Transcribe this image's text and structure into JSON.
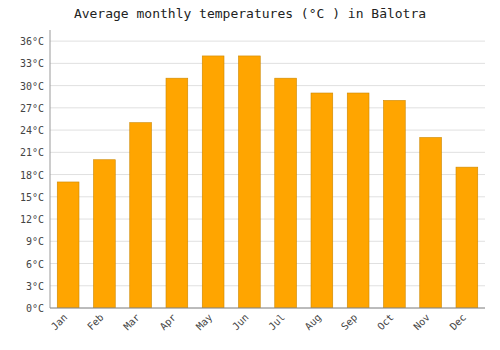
{
  "chart_data": {
    "type": "bar",
    "title": "Average monthly temperatures (°C ) in Bālotra",
    "categories": [
      "Jan",
      "Feb",
      "Mar",
      "Apr",
      "May",
      "Jun",
      "Jul",
      "Aug",
      "Sep",
      "Oct",
      "Nov",
      "Dec"
    ],
    "values": [
      17,
      20,
      25,
      31,
      34,
      34,
      31,
      29,
      29,
      28,
      23,
      19
    ],
    "color": "#FFA500",
    "ylim": [
      0,
      37.5
    ],
    "yticks": [
      {
        "value": 0,
        "label": "0°C"
      },
      {
        "value": 3,
        "label": "3°C"
      },
      {
        "value": 6,
        "label": "6°C"
      },
      {
        "value": 9,
        "label": "9°C"
      },
      {
        "value": 12,
        "label": "12°C"
      },
      {
        "value": 15,
        "label": "15°C"
      },
      {
        "value": 18,
        "label": "18°C"
      },
      {
        "value": 21,
        "label": "21°C"
      },
      {
        "value": 24,
        "label": "24°C"
      },
      {
        "value": 27,
        "label": "27°C"
      },
      {
        "value": 30,
        "label": "30°C"
      },
      {
        "value": 33,
        "label": "33°C"
      },
      {
        "value": 36,
        "label": "36°C"
      }
    ],
    "grid": true
  }
}
